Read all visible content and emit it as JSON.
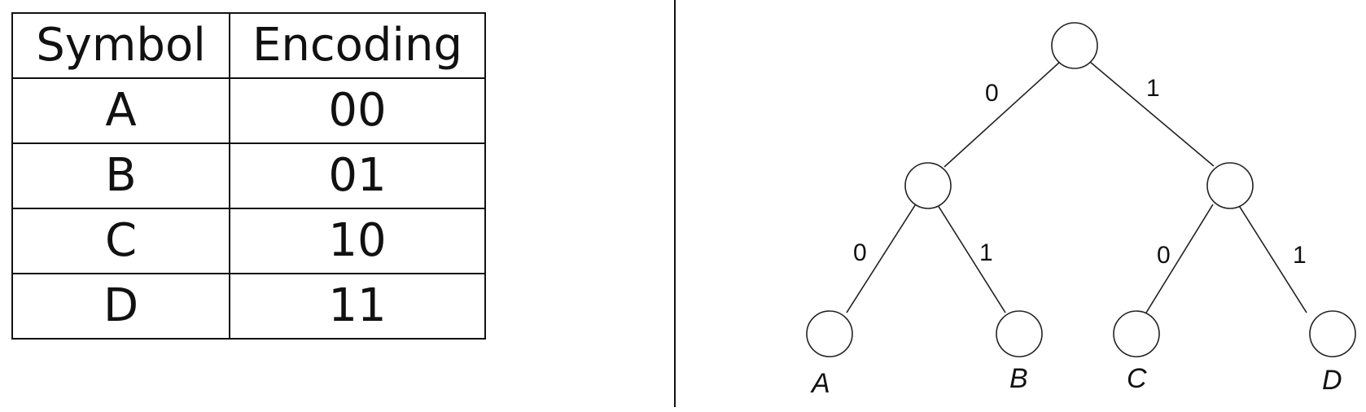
{
  "table": {
    "headers": [
      "Symbol",
      "Encoding"
    ],
    "rows": [
      {
        "symbol": "A",
        "encoding": "00"
      },
      {
        "symbol": "B",
        "encoding": "01"
      },
      {
        "symbol": "C",
        "encoding": "10"
      },
      {
        "symbol": "D",
        "encoding": "11"
      }
    ]
  },
  "tree": {
    "edge_labels": {
      "root_left": "0",
      "root_right": "1",
      "left_left": "0",
      "left_right": "1",
      "right_left": "0",
      "right_right": "1"
    },
    "leaves": [
      "A",
      "B",
      "C",
      "D"
    ]
  }
}
